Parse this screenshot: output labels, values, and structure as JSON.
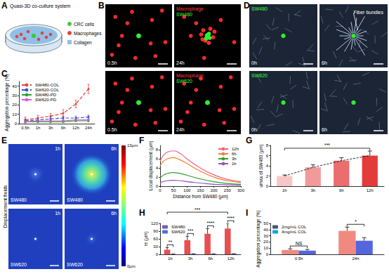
{
  "figure": {
    "panels": [
      {
        "letter": "A",
        "title": "Quasi-3D co-culture system",
        "legend": [
          {
            "label": "CRC cells",
            "color": "#3cc83c"
          },
          {
            "label": "Macrophages",
            "color": "#e84040"
          },
          {
            "label": "Collagen",
            "color": "#8fc0e6"
          }
        ]
      },
      {
        "letter": "B",
        "rows": [
          {
            "labels": [
              {
                "text": "Macrophage",
                "color": "#ff3b3b"
              },
              {
                "text": "SW480",
                "color": "#3cff3c"
              }
            ],
            "times": [
              "0.5h",
              "24h"
            ]
          },
          {
            "labels": [
              {
                "text": "Macrophage",
                "color": "#ff3b3b"
              },
              {
                "text": "SW620",
                "color": "#3cff3c"
              }
            ],
            "times": [
              "0.5h",
              "24h"
            ]
          }
        ]
      },
      {
        "letter": "D",
        "rows": [
          {
            "label": {
              "text": "SW480",
              "color": "#3cff3c"
            },
            "times": [
              "0h",
              "6h"
            ],
            "annotation": "Fiber bundles"
          },
          {
            "label": {
              "text": "SW620",
              "color": "#3cff3c"
            },
            "times": [
              "0h",
              "6h"
            ]
          }
        ]
      },
      {
        "letter": "E",
        "title": "Displacement fields",
        "rows": [
          {
            "label": "SW480",
            "times": [
              "1h",
              "6h"
            ]
          },
          {
            "label": "SW620",
            "times": [
              "1h",
              "6h"
            ]
          }
        ],
        "colorbar": {
          "range": [
            0,
            13
          ],
          "ticks": [
            {
              "value": 13,
              "label": "13μm"
            },
            {
              "value": 0,
              "label": "0μm"
            }
          ]
        }
      }
    ]
  },
  "chart_data": [
    {
      "panel": "C",
      "type": "line",
      "categories": [
        "0.5h",
        "1h",
        "3h",
        "6h",
        "12h",
        "24h"
      ],
      "ylabel": "Aggregation percentage (%)",
      "ylim": [
        0,
        45
      ],
      "yticks": [
        0,
        10,
        20,
        30,
        40
      ],
      "legend": "upper left",
      "series": [
        {
          "name": "SW480-COL",
          "color": "#e8423c",
          "line_style": "dashed",
          "marker": "circle",
          "values": [
            4,
            6,
            8,
            11,
            21,
            37
          ],
          "errors": [
            3,
            3,
            3,
            4,
            4,
            5
          ]
        },
        {
          "name": "SW620-COL",
          "color": "#3b4fd8",
          "line_style": "dashed",
          "marker": "circle",
          "values": [
            3,
            4,
            5,
            6,
            6,
            7
          ],
          "errors": [
            2,
            2,
            2,
            2,
            2,
            2
          ]
        },
        {
          "name": "SW480-PD",
          "color": "#2ca02c",
          "line_style": "solid",
          "marker": "circle",
          "values": [
            2,
            2,
            2,
            2,
            3,
            3
          ],
          "errors": [
            1,
            1,
            1,
            1,
            1,
            1
          ]
        },
        {
          "name": "SW620-PD",
          "color": "#d65fd6",
          "line_style": "solid",
          "marker": "circle",
          "values": [
            2,
            3,
            3,
            3,
            4,
            4
          ],
          "errors": [
            1,
            1,
            1,
            1,
            1,
            1
          ]
        }
      ]
    },
    {
      "panel": "F",
      "type": "line",
      "x": [
        0,
        25,
        50,
        75,
        100,
        150,
        200,
        250,
        300
      ],
      "xlabel": "Distance from SW480 (μm)",
      "ylabel": "Local displacement (μm)",
      "xlim": [
        0,
        300
      ],
      "xticks": [
        0,
        50,
        100,
        150,
        200,
        250,
        300
      ],
      "ylim": [
        0,
        9
      ],
      "yticks": [
        0,
        2,
        4,
        6,
        8
      ],
      "legend": "upper right",
      "series": [
        {
          "name": "12h",
          "color": "#f06080",
          "values": [
            5.5,
            7.5,
            7.8,
            7.2,
            6,
            4,
            2.5,
            1.5,
            1.0
          ]
        },
        {
          "name": "6h",
          "color": "#f08030",
          "values": [
            4.5,
            6,
            6.3,
            5.8,
            5,
            3.3,
            2,
            1.2,
            0.8
          ]
        },
        {
          "name": "3h",
          "color": "#30a030",
          "values": [
            1.8,
            2.8,
            3,
            2.8,
            2.4,
            1.6,
            1,
            0.6,
            0.4
          ]
        },
        {
          "name": "1h",
          "color": "#9050c0",
          "values": [
            0.8,
            1.2,
            1.3,
            1.2,
            1,
            0.7,
            0.4,
            0.3,
            0.2
          ]
        }
      ]
    },
    {
      "panel": "G",
      "type": "bar",
      "categories": [
        "1h",
        "3h",
        "6h",
        "12h"
      ],
      "values": [
        2.0,
        3.7,
        5.0,
        6.0
      ],
      "errors": [
        0.2,
        0.5,
        0.6,
        0.9
      ],
      "colors": [
        "#f7c6c6",
        "#f29a9a",
        "#ec6d6d",
        "#e33a3a"
      ],
      "line_style": "dashed",
      "ylabel": "umax of SW480 (μm)",
      "ylim": [
        0,
        8
      ],
      "yticks": [
        0,
        2,
        4,
        6,
        8
      ],
      "annotations": [
        {
          "text": "***",
          "from": {
            "category": "1h"
          },
          "to": {
            "category": "12h"
          }
        }
      ]
    },
    {
      "panel": "H",
      "type": "bar",
      "categories": [
        "1h",
        "3h",
        "6h",
        "12h"
      ],
      "ylabel": "re (μm)",
      "ylim": [
        0,
        120
      ],
      "yticks": [
        0,
        30,
        60,
        90,
        120
      ],
      "legend": "upper left",
      "series": [
        {
          "name": "SW480",
          "color": "#e8504f",
          "values": [
            18,
            55,
            80,
            100
          ],
          "errors": [
            8,
            15,
            20,
            20
          ]
        },
        {
          "name": "SW620",
          "color": "#4455dd",
          "values": [
            1,
            1.5,
            1.5,
            2
          ],
          "errors": [
            0.5,
            0.5,
            0.5,
            0.5
          ]
        }
      ],
      "annotations": [
        {
          "text": "**",
          "from": {
            "category": "1h",
            "series": "SW480"
          },
          "to": {
            "category": "1h",
            "series": "SW620"
          }
        },
        {
          "text": "***",
          "from": {
            "category": "3h",
            "series": "SW480"
          },
          "to": {
            "category": "3h",
            "series": "SW620"
          }
        },
        {
          "text": "****",
          "from": {
            "category": "6h",
            "series": "SW480"
          },
          "to": {
            "category": "6h",
            "series": "SW620"
          }
        },
        {
          "text": "****",
          "from": {
            "category": "12h",
            "series": "SW480"
          },
          "to": {
            "category": "12h",
            "series": "SW620"
          }
        },
        {
          "text": "***",
          "from": {
            "category": "1h",
            "series": "SW480"
          },
          "to": {
            "category": "12h",
            "series": "SW480"
          }
        }
      ]
    },
    {
      "panel": "I",
      "type": "bar",
      "categories": [
        "0.5h",
        "24h"
      ],
      "ylabel": "Aggregation percentage (%)",
      "ylim": [
        0,
        50
      ],
      "yticks": [
        0,
        10,
        20,
        30,
        40,
        50
      ],
      "legend": "upper left",
      "series": [
        {
          "name": "2mg/mL COL",
          "color": "#f08a80",
          "values": [
            7,
            38
          ],
          "errors": [
            2,
            6
          ]
        },
        {
          "name": "4mg/mL COL",
          "color": "#5566dd",
          "values": [
            6,
            22
          ],
          "errors": [
            2,
            5
          ]
        }
      ],
      "annotations": [
        {
          "text": "NS",
          "from": {
            "category": "0.5h",
            "series": "2mg/mL COL"
          },
          "to": {
            "category": "0.5h",
            "series": "4mg/mL COL"
          }
        },
        {
          "text": "*",
          "from": {
            "category": "24h",
            "series": "2mg/mL COL"
          },
          "to": {
            "category": "24h",
            "series": "4mg/mL COL"
          }
        }
      ]
    }
  ]
}
